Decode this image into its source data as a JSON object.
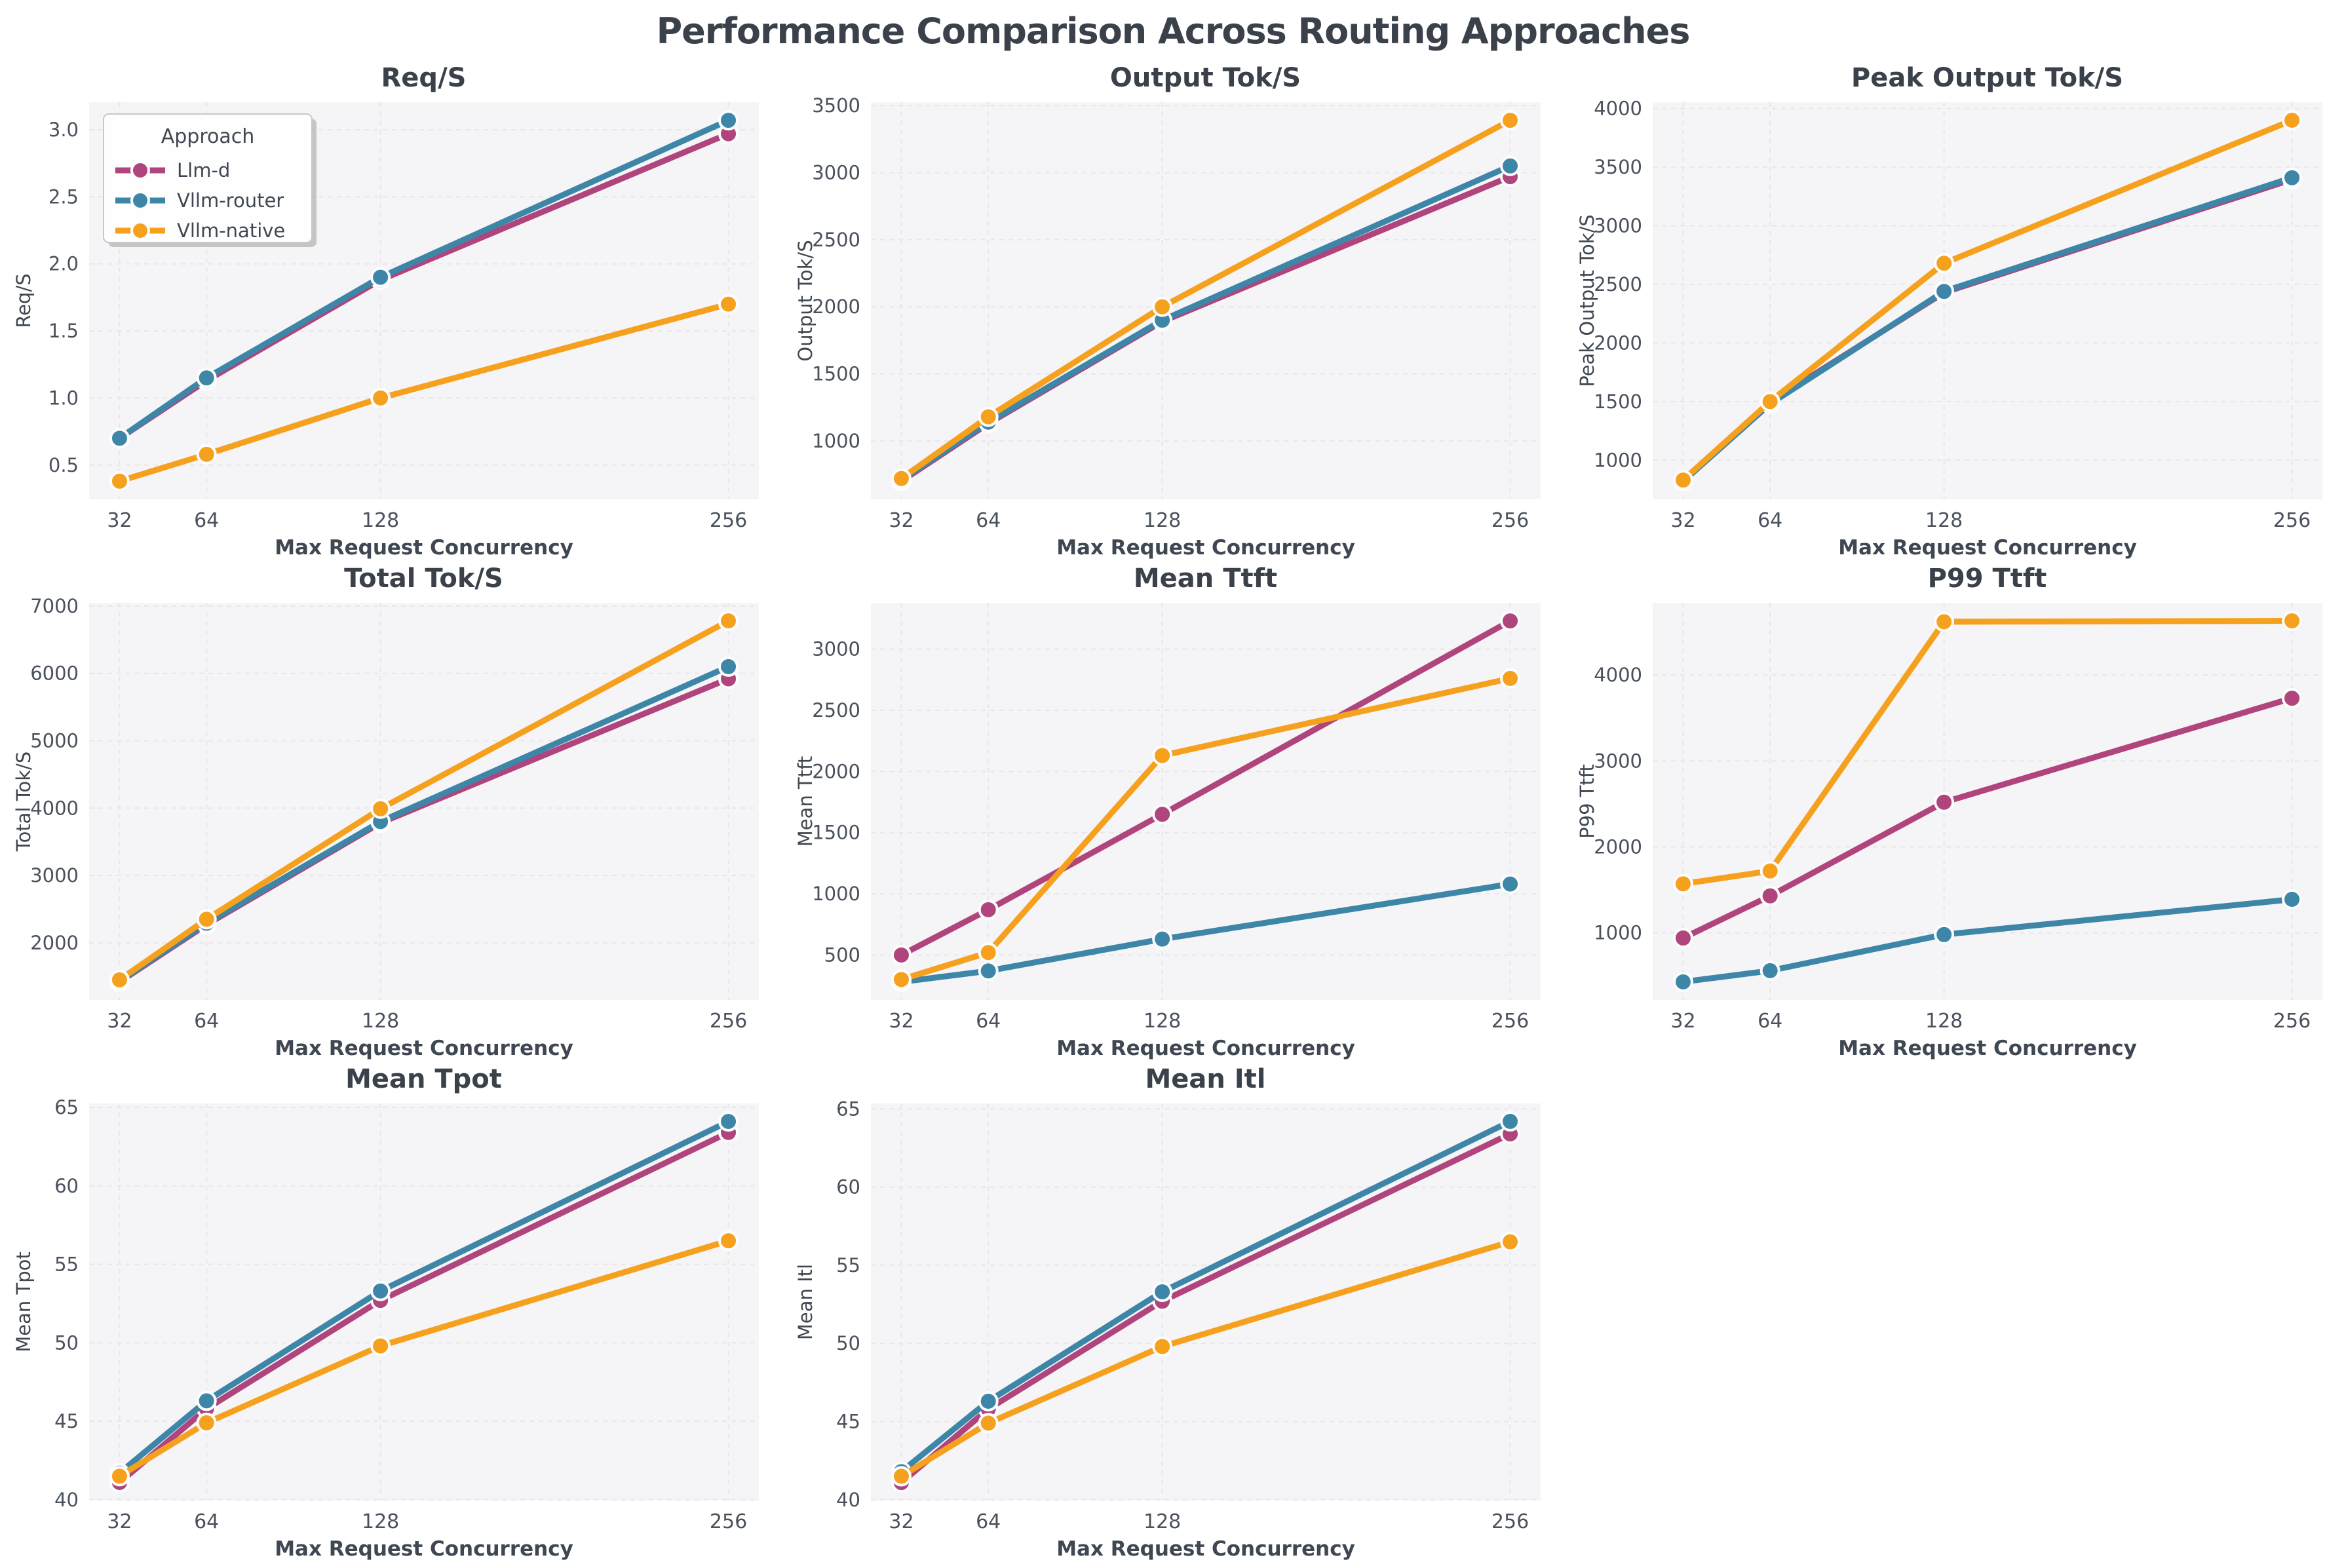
{
  "page": {
    "title": "Performance Comparison Across Routing Approaches"
  },
  "colors": {
    "llm_d": "#B0447C",
    "vllm_router": "#3E86A8",
    "vllm_native": "#F5A11E",
    "title_text": "#3a414b",
    "tick_text": "#4a515c",
    "axis_label_text": "#3f4752",
    "plot_bg": "#f5f4f6",
    "grid_line": "#e8e6ea",
    "marker_edge": "#fdfdfe",
    "legend_bg": "#fefefe",
    "legend_border": "#c8c8c8",
    "legend_shadow": "rgba(110,110,110,0.35)"
  },
  "legend": {
    "title": "Approach",
    "entries": [
      {
        "label": "Llm-d",
        "color": "#B0447C"
      },
      {
        "label": "Vllm-router",
        "color": "#3E86A8"
      },
      {
        "label": "Vllm-native",
        "color": "#F5A11E"
      }
    ]
  },
  "chart_data": [
    {
      "type": "line",
      "title": "Req/S",
      "xlabel": "Max Request Concurrency",
      "ylabel": "Req/S",
      "x": [
        32,
        64,
        128,
        256
      ],
      "xlim": [
        20.8,
        267.2
      ],
      "ylim": [
        0.245,
        3.205
      ],
      "yticks": [
        0.5,
        1.0,
        1.5,
        2.0,
        2.5,
        3.0
      ],
      "ytick_decimals": 1,
      "grid": true,
      "legend_visible": true,
      "series": [
        {
          "name": "Llm-d",
          "values": [
            0.7,
            1.13,
            1.88,
            2.97
          ]
        },
        {
          "name": "Vllm-router",
          "values": [
            0.7,
            1.15,
            1.9,
            3.07
          ]
        },
        {
          "name": "Vllm-native",
          "values": [
            0.38,
            0.58,
            1.0,
            1.7
          ]
        }
      ]
    },
    {
      "type": "line",
      "title": "Output Tok/S",
      "xlabel": "Max Request Concurrency",
      "ylabel": "Output Tok/S",
      "x": [
        32,
        64,
        128,
        256
      ],
      "xlim": [
        20.8,
        267.2
      ],
      "ylim": [
        565,
        3525
      ],
      "yticks": [
        1000,
        1500,
        2000,
        2500,
        3000,
        3500
      ],
      "ytick_decimals": 0,
      "grid": true,
      "legend_visible": false,
      "series": [
        {
          "name": "Llm-d",
          "values": [
            700,
            1130,
            1890,
            2970
          ]
        },
        {
          "name": "Vllm-router",
          "values": [
            710,
            1140,
            1900,
            3050
          ]
        },
        {
          "name": "Vllm-native",
          "values": [
            720,
            1180,
            2000,
            3390
          ]
        }
      ]
    },
    {
      "type": "line",
      "title": "Peak Output Tok/S",
      "xlabel": "Max Request Concurrency",
      "ylabel": "Peak Output Tok/S",
      "x": [
        32,
        64,
        128,
        256
      ],
      "xlim": [
        20.8,
        267.2
      ],
      "ylim": [
        666,
        4054
      ],
      "yticks": [
        1000,
        1500,
        2000,
        2500,
        3000,
        3500,
        4000
      ],
      "ytick_decimals": 0,
      "grid": true,
      "legend_visible": false,
      "series": [
        {
          "name": "Llm-d",
          "values": [
            830,
            1495,
            2430,
            3395
          ]
        },
        {
          "name": "Vllm-router",
          "values": [
            820,
            1480,
            2440,
            3410
          ]
        },
        {
          "name": "Vllm-native",
          "values": [
            830,
            1500,
            2680,
            3900
          ]
        }
      ]
    },
    {
      "type": "line",
      "title": "Total Tok/S",
      "xlabel": "Max Request Concurrency",
      "ylabel": "Total Tok/S",
      "x": [
        32,
        64,
        128,
        256
      ],
      "xlim": [
        20.8,
        267.2
      ],
      "ylim": [
        1152,
        7048
      ],
      "yticks": [
        2000,
        3000,
        4000,
        5000,
        6000,
        7000
      ],
      "ytick_decimals": 0,
      "grid": true,
      "legend_visible": false,
      "series": [
        {
          "name": "Llm-d",
          "values": [
            1420,
            2270,
            3780,
            5920
          ]
        },
        {
          "name": "Vllm-router",
          "values": [
            1430,
            2290,
            3800,
            6100
          ]
        },
        {
          "name": "Vllm-native",
          "values": [
            1450,
            2350,
            3990,
            6780
          ]
        }
      ]
    },
    {
      "type": "line",
      "title": "Mean Ttft",
      "xlabel": "Max Request Concurrency",
      "ylabel": "Mean Ttft",
      "x": [
        32,
        64,
        128,
        256
      ],
      "xlim": [
        20.8,
        267.2
      ],
      "ylim": [
        133,
        3378
      ],
      "yticks": [
        500,
        1000,
        1500,
        2000,
        2500,
        3000
      ],
      "ytick_decimals": 0,
      "grid": true,
      "legend_visible": false,
      "series": [
        {
          "name": "Llm-d",
          "values": [
            500,
            870,
            1650,
            3230
          ]
        },
        {
          "name": "Vllm-router",
          "values": [
            280,
            370,
            630,
            1080
          ]
        },
        {
          "name": "Vllm-native",
          "values": [
            300,
            520,
            2130,
            2760
          ]
        }
      ]
    },
    {
      "type": "line",
      "title": "P99 Ttft",
      "xlabel": "Max Request Concurrency",
      "ylabel": "P99 Ttft",
      "x": [
        32,
        64,
        128,
        256
      ],
      "xlim": [
        20.8,
        267.2
      ],
      "ylim": [
        220,
        4840
      ],
      "yticks": [
        1000,
        2000,
        3000,
        4000
      ],
      "ytick_decimals": 0,
      "grid": true,
      "legend_visible": false,
      "series": [
        {
          "name": "Llm-d",
          "values": [
            940,
            1430,
            2520,
            3730
          ]
        },
        {
          "name": "Vllm-router",
          "values": [
            430,
            560,
            980,
            1390
          ]
        },
        {
          "name": "Vllm-native",
          "values": [
            1570,
            1720,
            4620,
            4630
          ]
        }
      ]
    },
    {
      "type": "line",
      "title": "Mean Tpot",
      "xlabel": "Max Request Concurrency",
      "ylabel": "Mean Tpot",
      "x": [
        32,
        64,
        128,
        256
      ],
      "xlim": [
        20.8,
        267.2
      ],
      "ylim": [
        39.95,
        65.25
      ],
      "yticks": [
        40,
        45,
        50,
        55,
        60,
        65
      ],
      "ytick_decimals": 0,
      "grid": true,
      "legend_visible": false,
      "series": [
        {
          "name": "Llm-d",
          "values": [
            41.1,
            45.8,
            52.7,
            63.4
          ]
        },
        {
          "name": "Vllm-router",
          "values": [
            41.7,
            46.3,
            53.3,
            64.1
          ]
        },
        {
          "name": "Vllm-native",
          "values": [
            41.5,
            44.9,
            49.8,
            56.5
          ]
        }
      ]
    },
    {
      "type": "line",
      "title": "Mean Itl",
      "xlabel": "Max Request Concurrency",
      "ylabel": "Mean Itl",
      "x": [
        32,
        64,
        128,
        256
      ],
      "xlim": [
        20.8,
        267.2
      ],
      "ylim": [
        39.95,
        65.35
      ],
      "yticks": [
        40,
        45,
        50,
        55,
        60,
        65
      ],
      "ytick_decimals": 0,
      "grid": true,
      "legend_visible": false,
      "series": [
        {
          "name": "Llm-d",
          "values": [
            41.1,
            45.8,
            52.7,
            63.4
          ]
        },
        {
          "name": "Vllm-router",
          "values": [
            41.8,
            46.3,
            53.3,
            64.2
          ]
        },
        {
          "name": "Vllm-native",
          "values": [
            41.5,
            44.9,
            49.8,
            56.5
          ]
        }
      ]
    }
  ]
}
